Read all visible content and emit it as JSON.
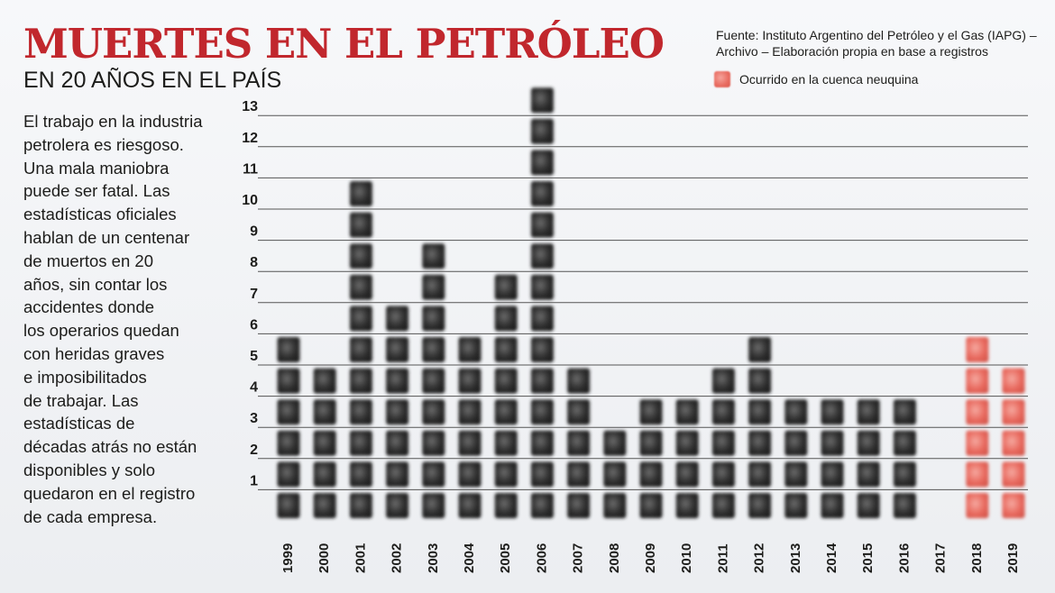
{
  "header": {
    "title": "MUERTES EN EL PETRÓLEO",
    "subtitle": "EN 20 AÑOS EN EL PAÍS"
  },
  "source": {
    "line1": "Fuente: Instituto Argentino del Petróleo y el Gas (IAPG) –",
    "line2": "Archivo – Elaboración propia en base a registros"
  },
  "legend": {
    "label": "Ocurrido en la cuenca neuquina",
    "color": "#e8695e"
  },
  "body": {
    "lines": [
      "El trabajo en la industria",
      "petrolera es riesgoso.",
      "Una mala maniobra",
      "puede ser fatal. Las",
      "estadísticas oficiales",
      "hablan de un centenar",
      "de muertos en 20",
      "años, sin contar los",
      "accidentes donde",
      "los operarios quedan",
      "con heridas graves",
      "e imposibilitados",
      "de trabajar. Las",
      "estadísticas de",
      "décadas atrás no están",
      "disponibles y solo",
      "quedaron en el registro",
      "de cada empresa."
    ]
  },
  "chart_data": {
    "type": "bar",
    "title": "MUERTES EN EL PETRÓLEO",
    "subtitle": "EN 20 AÑOS EN EL PAÍS",
    "categories": [
      "1999",
      "2000",
      "2001",
      "2002",
      "2003",
      "2004",
      "2005",
      "2006",
      "2007",
      "2008",
      "2009",
      "2010",
      "2011",
      "2012",
      "2013",
      "2014",
      "2015",
      "2016",
      "2017",
      "2018",
      "2019"
    ],
    "values": [
      6,
      5,
      11,
      7,
      9,
      6,
      8,
      14,
      5,
      3,
      4,
      4,
      5,
      6,
      4,
      4,
      4,
      4,
      0,
      6,
      5
    ],
    "highlighted_categories": [
      "2018",
      "2019"
    ],
    "highlight_color": "#e8695e",
    "base_color": "#3a3a3a",
    "y_ticks": [
      1,
      2,
      3,
      4,
      5,
      6,
      7,
      8,
      9,
      10,
      11,
      12,
      13
    ],
    "ylim": [
      0,
      14
    ],
    "grid": true,
    "legend_position": "top-right"
  }
}
